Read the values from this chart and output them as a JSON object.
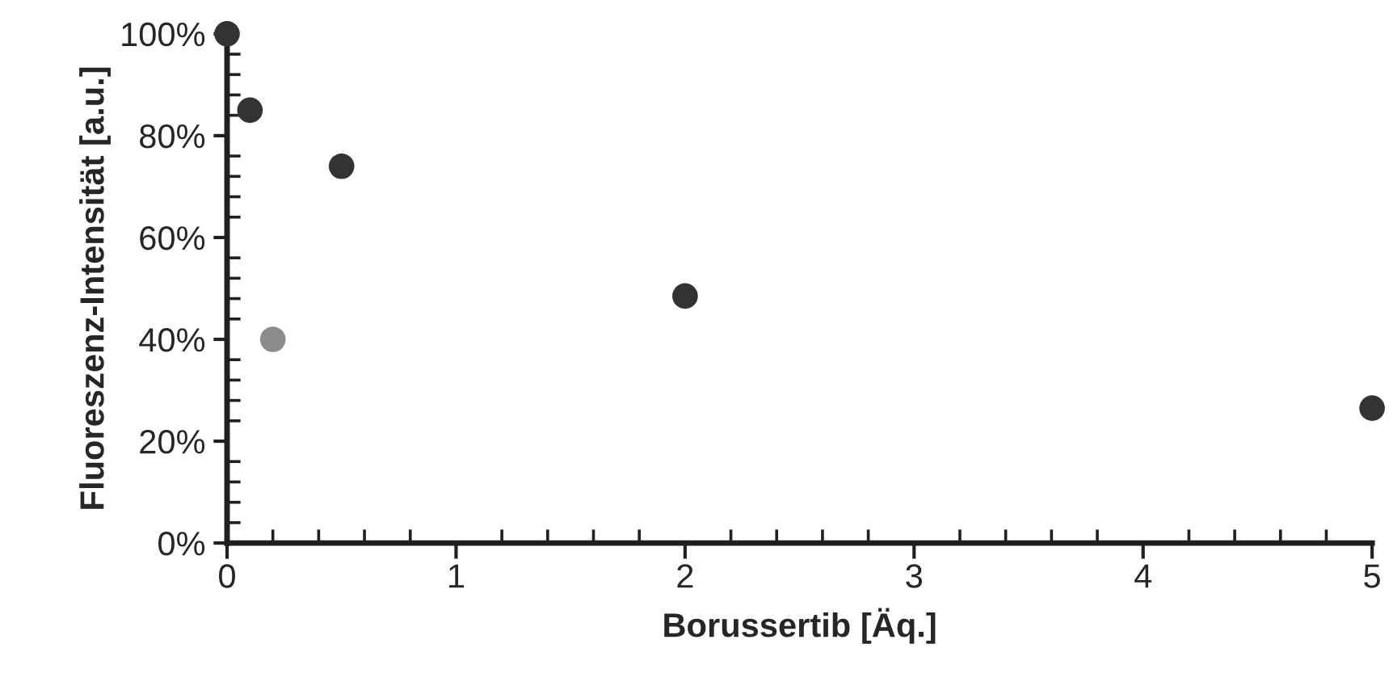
{
  "chart_data": {
    "type": "scatter",
    "xlabel": "Borussertib [Äq.]",
    "ylabel": "Fluoreszenz-Intensität [a.u.]",
    "series": [
      {
        "color": "#333333",
        "x": [
          0,
          0.1,
          0.5,
          2,
          5
        ],
        "values": [
          100,
          85,
          74,
          48.5,
          26.5
        ]
      },
      {
        "color": "#8c8c8c",
        "x": [
          0.2
        ],
        "values": [
          40
        ]
      }
    ],
    "xlim": [
      0,
      5
    ],
    "xticks": [
      0,
      1,
      2,
      3,
      4,
      5
    ],
    "ylim": [
      0,
      100
    ],
    "yticks": [
      {
        "value": 0,
        "label": "0%"
      },
      {
        "value": 20,
        "label": "20%"
      },
      {
        "value": 40,
        "label": "40%"
      },
      {
        "value": 60,
        "label": "60%"
      },
      {
        "value": 80,
        "label": "80%"
      },
      {
        "value": 100,
        "label": "100%"
      }
    ],
    "marker": "circle",
    "grid": false,
    "legend": false
  }
}
